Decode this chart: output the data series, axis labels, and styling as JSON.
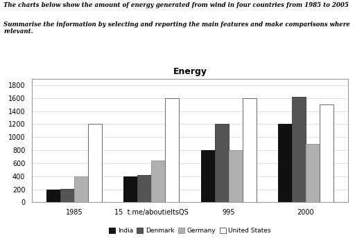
{
  "title": "Energy",
  "header_line1": "The charts below show the amount of energy generated from wind in four countries from 1985 to 2005",
  "header_line2": "Summarise the information by selecting and reporting the main features and make comparisons where\nrelevant.",
  "categories": [
    "1985",
    "15  t.me/aboutieltsQS",
    "995",
    "2000"
  ],
  "series": {
    "India": [
      200,
      400,
      800,
      1200
    ],
    "Denmark": [
      210,
      420,
      1200,
      1620
    ],
    "Germany": [
      400,
      640,
      800,
      900
    ],
    "United States": [
      1200,
      1600,
      1600,
      1500
    ]
  },
  "colors": {
    "India": "#111111",
    "Denmark": "#555555",
    "Germany": "#b0b0b0",
    "United States": "#ffffff"
  },
  "edge_colors": {
    "India": "#111111",
    "Denmark": "#444444",
    "Germany": "#999999",
    "United States": "#666666"
  },
  "ylim": [
    0,
    1900
  ],
  "yticks": [
    0,
    200,
    400,
    600,
    800,
    1000,
    1200,
    1400,
    1600,
    1800
  ],
  "bar_width": 0.18,
  "figsize": [
    5.12,
    3.44
  ],
  "dpi": 100,
  "legend_labels": [
    "India",
    "Denmark",
    "Germany",
    "United States"
  ],
  "chart_bg": "#ffffff",
  "outer_bg": "#ffffff",
  "grid_color": "#d0d0d0",
  "border_color": "#999999"
}
